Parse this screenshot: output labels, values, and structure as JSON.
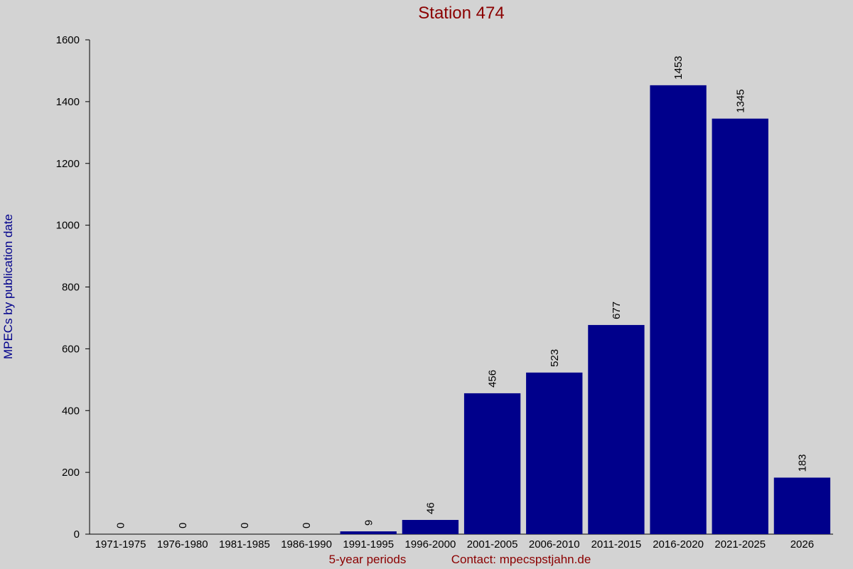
{
  "chart_data": {
    "type": "bar",
    "title": "Station 474",
    "y_label": "MPECs by publication date",
    "x_label": "5-year periods",
    "contact": "Contact: mpecspstjahn.de",
    "categories": [
      "1971-1975",
      "1976-1980",
      "1981-1985",
      "1986-1990",
      "1991-1995",
      "1996-2000",
      "2001-2005",
      "2006-2010",
      "2011-2015",
      "2016-2020",
      "2021-2025",
      "2026"
    ],
    "values": [
      0,
      0,
      0,
      0,
      9,
      46,
      456,
      523,
      677,
      1453,
      1345,
      183
    ],
    "color": "#00008b",
    "ylim": [
      0,
      1600
    ],
    "yticks": [
      0,
      200,
      400,
      600,
      800,
      1000,
      1200,
      1400,
      1600
    ],
    "grid": false
  }
}
